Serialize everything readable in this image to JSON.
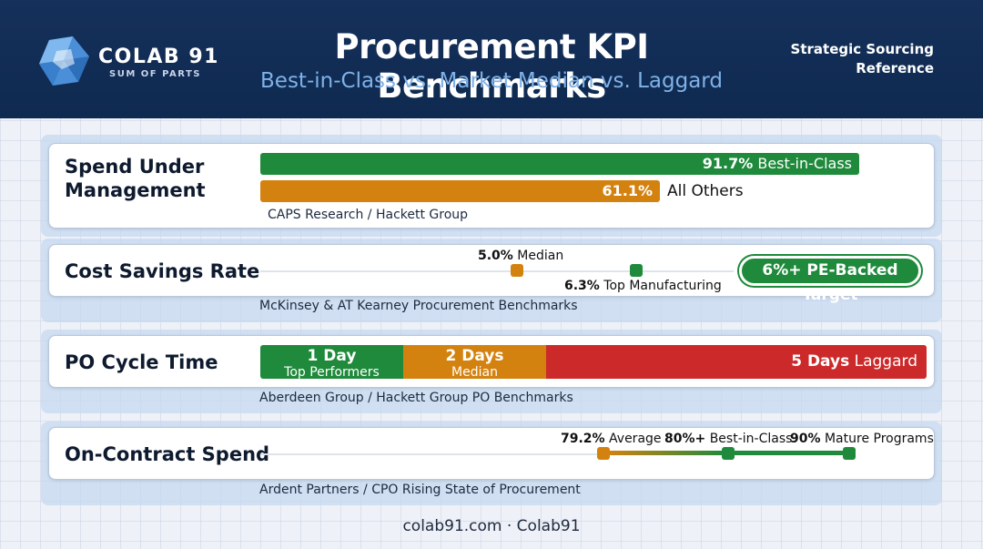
{
  "header": {
    "brand_name": "COLAB 91",
    "brand_tag": "SUM OF PARTS",
    "title": "Procurement KPI Benchmarks",
    "subtitle": "Best-in-Class vs. Market Median vs. Laggard",
    "side_ref": "Strategic Sourcing Reference"
  },
  "colors": {
    "header_bg": "#0f2a50",
    "green": "#1f8a3b",
    "orange": "#d4820f",
    "red": "#cc2a2a"
  },
  "rows": {
    "spend": {
      "label": "Spend Under Management",
      "best_value": "91.7%",
      "best_fraction": 0.917,
      "best_label": "Best-in-Class",
      "others_value": "61.1%",
      "others_fraction": 0.611,
      "others_label": "All Others",
      "source": "CAPS Research / Hackett Group"
    },
    "savings": {
      "label": "Cost Savings Rate",
      "median_value": "5.0%",
      "median_label": "Median",
      "mfg_value": "6.3%",
      "mfg_label": "Top Manufacturing",
      "target": "6%+ PE-Backed Target",
      "source": "McKinsey & AT Kearney Procurement Benchmarks"
    },
    "po_cycle": {
      "label": "PO Cycle Time",
      "top_value": "1 Day",
      "top_label": "Top Performers",
      "median_value": "2 Days",
      "median_label": "Median",
      "laggard_value": "5 Days",
      "laggard_label": "Laggard",
      "source": "Aberdeen Group / Hackett Group PO Benchmarks"
    },
    "contract": {
      "label": "On-Contract Spend",
      "avg_value": "79.2%",
      "avg_label": "Average",
      "best_value": "80%+",
      "best_label": "Best-in-Class",
      "mature_value": "90%",
      "mature_label": "Mature Programs",
      "source": "Ardent Partners / CPO Rising State of Procurement"
    }
  },
  "footer": "colab91.com · Colab91"
}
